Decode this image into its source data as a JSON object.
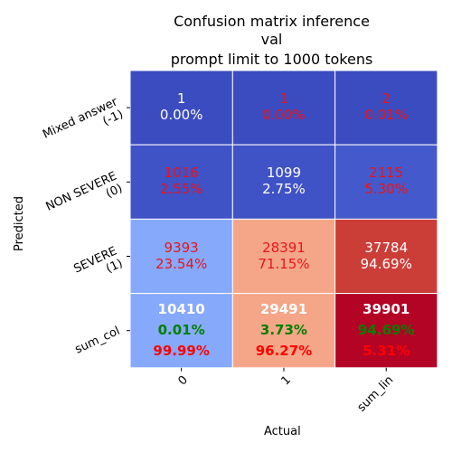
{
  "chart_data": {
    "type": "heatmap",
    "title_lines": [
      "Confusion matrix inference",
      "val",
      "prompt limit to 1000 tokens"
    ],
    "xlabel": "Actual",
    "ylabel": "Predicted",
    "x_categories": [
      "0",
      "1",
      "sum_lin"
    ],
    "y_categories": [
      "Mixed answer\n(-1)",
      "NON SEVERE\n(0)",
      "SEVERE\n(1)",
      "sum_col"
    ],
    "colormap": "coolwarm",
    "cells": [
      [
        {
          "bg": "#3b4cc0",
          "lines": [
            {
              "text": "1",
              "color": "#ffffff"
            },
            {
              "text": "0.00%",
              "color": "#ffffff"
            }
          ]
        },
        {
          "bg": "#3b4cc0",
          "lines": [
            {
              "text": "1",
              "color": "#e8141c"
            },
            {
              "text": "0.00%",
              "color": "#e8141c"
            }
          ]
        },
        {
          "bg": "#3b4cc0",
          "lines": [
            {
              "text": "2",
              "color": "#e8141c"
            },
            {
              "text": "0.01%",
              "color": "#e8141c"
            }
          ]
        }
      ],
      [
        {
          "bg": "#3f52c6",
          "lines": [
            {
              "text": "1016",
              "color": "#e8141c"
            },
            {
              "text": "2.55%",
              "color": "#e8141c"
            }
          ]
        },
        {
          "bg": "#3f52c6",
          "lines": [
            {
              "text": "1099",
              "color": "#ffffff"
            },
            {
              "text": "2.75%",
              "color": "#ffffff"
            }
          ]
        },
        {
          "bg": "#445acc",
          "lines": [
            {
              "text": "2115",
              "color": "#e8141c"
            },
            {
              "text": "5.30%",
              "color": "#e8141c"
            }
          ]
        }
      ],
      [
        {
          "bg": "#86a9fc",
          "lines": [
            {
              "text": "9393",
              "color": "#e8141c"
            },
            {
              "text": "23.54%",
              "color": "#e8141c"
            }
          ]
        },
        {
          "bg": "#f5a688",
          "lines": [
            {
              "text": "28391",
              "color": "#e8141c"
            },
            {
              "text": "71.15%",
              "color": "#e8141c"
            }
          ]
        },
        {
          "bg": "#cb3e38",
          "lines": [
            {
              "text": "37784",
              "color": "#ffffff"
            },
            {
              "text": "94.69%",
              "color": "#ffffff"
            }
          ]
        }
      ],
      [
        {
          "bg": "#86a9fc",
          "total": true,
          "lines": [
            {
              "text": "10410",
              "color": "#ffffff"
            },
            {
              "text": "0.01%",
              "color": "#008000"
            },
            {
              "text": "99.99%",
              "color": "#ff0000"
            }
          ]
        },
        {
          "bg": "#f5a688",
          "total": true,
          "lines": [
            {
              "text": "29491",
              "color": "#ffffff"
            },
            {
              "text": "3.73%",
              "color": "#008000"
            },
            {
              "text": "96.27%",
              "color": "#ff0000"
            }
          ]
        },
        {
          "bg": "#b40426",
          "total": true,
          "lines": [
            {
              "text": "39901",
              "color": "#ffffff"
            },
            {
              "text": "94.69%",
              "color": "#008000"
            },
            {
              "text": "5.31%",
              "color": "#ff0000"
            }
          ]
        }
      ]
    ]
  }
}
